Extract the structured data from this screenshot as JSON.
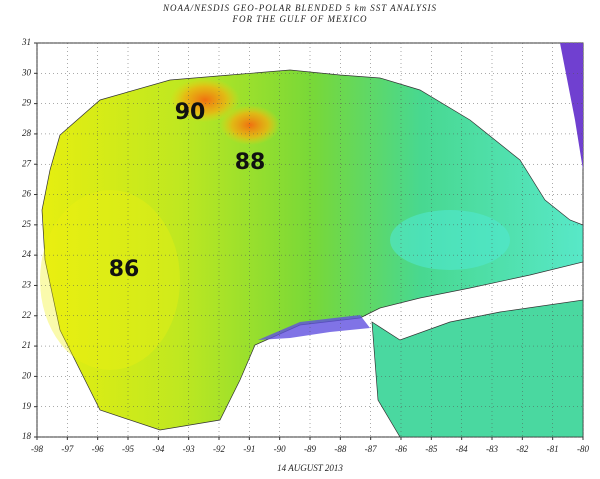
{
  "title": [
    "NOAA/NESDIS GEO-POLAR BLENDED 5 km SST ANALYSIS",
    "FOR THE GULF OF MEXICO"
  ],
  "date": "14 AUGUST 2013",
  "map": {
    "xlim": [
      -98,
      -80
    ],
    "ylim": [
      18,
      31
    ],
    "xticks": [
      -98,
      -97,
      -96,
      -95,
      -94,
      -93,
      -92,
      -91,
      -90,
      -89,
      -88,
      -87,
      -86,
      -85,
      -84,
      -83,
      -82,
      -81,
      -80
    ],
    "yticks": [
      18,
      19,
      20,
      21,
      22,
      23,
      24,
      25,
      26,
      27,
      28,
      29,
      30,
      31
    ]
  },
  "annotations": [
    "90",
    "88",
    "86"
  ]
}
